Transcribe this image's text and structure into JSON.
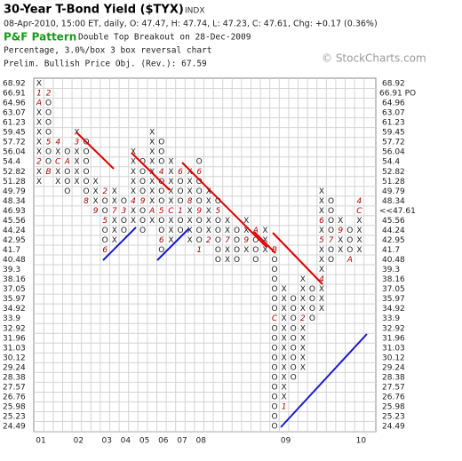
{
  "chart_data": {
    "type": "point-and-figure",
    "title": "30-Year T-Bond Yield ($TYX)",
    "exchange": "INDX",
    "quote": "08-Apr-2010, 15:00 ET, daily, O: 47.47, H: 47.74, L: 47.23, C: 47.61, Chg: +0.17 (0.36%)",
    "pattern_label": "P&F Pattern",
    "pattern": "Double Top Breakout on 28-Dec-2009",
    "method": "Percentage, 3.0%/box 3 box reversal chart",
    "objective": "Prelim. Bullish Price Obj. (Rev.): 67.59",
    "watermark": "© StockCharts.com",
    "yticks": [
      68.92,
      66.91,
      64.96,
      63.07,
      61.23,
      59.45,
      57.72,
      56.04,
      54.4,
      52.82,
      51.28,
      49.79,
      48.34,
      46.93,
      45.56,
      44.24,
      42.95,
      41.7,
      40.48,
      39.3,
      38.16,
      37.05,
      35.97,
      34.92,
      33.9,
      32.92,
      31.96,
      31.03,
      30.12,
      29.24,
      28.38,
      27.57,
      26.76,
      25.98,
      25.23,
      24.49
    ],
    "price_objective": {
      "value": 66.91,
      "label": "66.91 PO",
      "color": "#1a9a1a"
    },
    "last_price": {
      "value": 47.61,
      "label": "<<47.61",
      "color": "#cc0000"
    },
    "grid": true,
    "columns": [
      {
        "type": "X",
        "high": 68.92,
        "low": 51.28,
        "year": "01",
        "months": [
          {
            "price": 66.91,
            "text": "1"
          },
          {
            "price": 64.96,
            "text": "A"
          },
          {
            "price": 54.4,
            "text": "2"
          }
        ]
      },
      {
        "type": "O",
        "high": 66.91,
        "low": 52.82,
        "months": [
          {
            "price": 66.91,
            "text": "2"
          },
          {
            "price": 57.72,
            "text": "5"
          },
          {
            "price": 52.82,
            "text": "B"
          }
        ]
      },
      {
        "type": "X",
        "high": 57.72,
        "low": 51.28,
        "months": [
          {
            "price": 57.72,
            "text": "4"
          },
          {
            "price": 54.4,
            "text": "C"
          }
        ]
      },
      {
        "type": "O",
        "high": 56.04,
        "low": 49.79,
        "months": [
          {
            "price": 54.4,
            "text": "A"
          }
        ]
      },
      {
        "type": "X",
        "high": 59.45,
        "low": 51.28,
        "year": "02",
        "months": [
          {
            "price": 57.72,
            "text": "3"
          }
        ]
      },
      {
        "type": "O",
        "high": 57.72,
        "low": 48.34,
        "months": [
          {
            "price": 48.34,
            "text": "8"
          }
        ]
      },
      {
        "type": "X",
        "high": 51.28,
        "low": 46.93,
        "months": [
          {
            "price": 46.93,
            "text": "9"
          }
        ]
      },
      {
        "type": "O",
        "high": 49.79,
        "low": 41.7,
        "year": "03",
        "months": [
          {
            "price": 49.79,
            "text": "2"
          },
          {
            "price": 45.56,
            "text": "5"
          },
          {
            "price": 41.7,
            "text": "6"
          }
        ]
      },
      {
        "type": "X",
        "high": 49.79,
        "low": 42.95,
        "months": [
          {
            "price": 46.93,
            "text": "7"
          }
        ]
      },
      {
        "type": "O",
        "high": 48.34,
        "low": 44.24,
        "year": "04",
        "months": [
          {
            "price": 46.93,
            "text": "3"
          }
        ]
      },
      {
        "type": "X",
        "high": 56.04,
        "low": 45.56,
        "months": [
          {
            "price": 48.34,
            "text": "4"
          }
        ]
      },
      {
        "type": "O",
        "high": 54.4,
        "low": 44.24,
        "year": "05",
        "months": [
          {
            "price": 48.34,
            "text": "9"
          }
        ]
      },
      {
        "type": "X",
        "high": 59.45,
        "low": 45.56,
        "months": [
          {
            "price": 46.93,
            "text": "A"
          }
        ]
      },
      {
        "type": "O",
        "high": 57.72,
        "low": 41.7,
        "year": "06",
        "months": [
          {
            "price": 52.82,
            "text": "4"
          },
          {
            "price": 46.93,
            "text": "5"
          },
          {
            "price": 42.95,
            "text": "6"
          }
        ]
      },
      {
        "type": "X",
        "high": 54.4,
        "low": 42.95,
        "months": [
          {
            "price": 46.93,
            "text": "C"
          }
        ]
      },
      {
        "type": "O",
        "high": 52.82,
        "low": 44.24,
        "year": "07",
        "months": [
          {
            "price": 52.82,
            "text": "6"
          },
          {
            "price": 46.93,
            "text": "1"
          }
        ]
      },
      {
        "type": "X",
        "high": 52.82,
        "low": 42.95,
        "months": [
          {
            "price": 48.34,
            "text": "8"
          }
        ]
      },
      {
        "type": "O",
        "high": 54.4,
        "low": 41.7,
        "year": "08",
        "months": [
          {
            "price": 52.82,
            "text": "6"
          },
          {
            "price": 46.93,
            "text": "9"
          },
          {
            "price": 41.7,
            "text": "1"
          }
        ]
      },
      {
        "type": "X",
        "high": 49.79,
        "low": 42.95,
        "months": [
          {
            "price": 42.95,
            "text": "2"
          }
        ]
      },
      {
        "type": "O",
        "high": 48.34,
        "low": 40.48,
        "months": [
          {
            "price": 46.93,
            "text": "5"
          }
        ]
      },
      {
        "type": "X",
        "high": 45.56,
        "low": 40.48,
        "months": [
          {
            "price": 42.95,
            "text": "7"
          }
        ]
      },
      {
        "type": "O",
        "high": 44.24,
        "low": 40.48,
        "months": []
      },
      {
        "type": "X",
        "high": 45.56,
        "low": 41.7,
        "months": [
          {
            "price": 42.95,
            "text": "9"
          }
        ]
      },
      {
        "type": "O",
        "high": 44.24,
        "low": 40.48,
        "months": [
          {
            "price": 44.24,
            "text": "A"
          }
        ]
      },
      {
        "type": "X",
        "high": 44.24,
        "low": 41.7,
        "months": []
      },
      {
        "type": "O",
        "high": 41.7,
        "low": 24.49,
        "months": [
          {
            "price": 41.7,
            "text": "B"
          },
          {
            "price": 33.9,
            "text": "C"
          }
        ]
      },
      {
        "type": "X",
        "high": 37.05,
        "low": 25.98,
        "year": "09",
        "months": [
          {
            "price": 25.98,
            "text": "1"
          }
        ]
      },
      {
        "type": "O",
        "high": 35.97,
        "low": 28.38,
        "months": []
      },
      {
        "type": "X",
        "high": 38.16,
        "low": 29.24,
        "months": [
          {
            "price": 33.9,
            "text": "2"
          }
        ]
      },
      {
        "type": "O",
        "high": 37.05,
        "low": 33.9,
        "months": []
      },
      {
        "type": "X",
        "high": 49.79,
        "low": 34.92,
        "months": [
          {
            "price": 38.16,
            "text": "4"
          },
          {
            "price": 42.95,
            "text": "5"
          },
          {
            "price": 45.56,
            "text": "6"
          }
        ]
      },
      {
        "type": "O",
        "high": 48.34,
        "low": 40.48,
        "months": [
          {
            "price": 42.95,
            "text": "7"
          }
        ]
      },
      {
        "type": "X",
        "high": 45.56,
        "low": 41.7,
        "months": [
          {
            "price": 44.24,
            "text": "9"
          }
        ]
      },
      {
        "type": "O",
        "high": 44.24,
        "low": 40.48,
        "months": [
          {
            "price": 40.48,
            "text": "A"
          }
        ]
      },
      {
        "type": "X",
        "high": 48.34,
        "low": 41.7,
        "year": "10",
        "months": [
          {
            "price": 46.93,
            "text": "C"
          },
          {
            "price": 48.34,
            "text": "4"
          }
        ]
      }
    ]
  }
}
